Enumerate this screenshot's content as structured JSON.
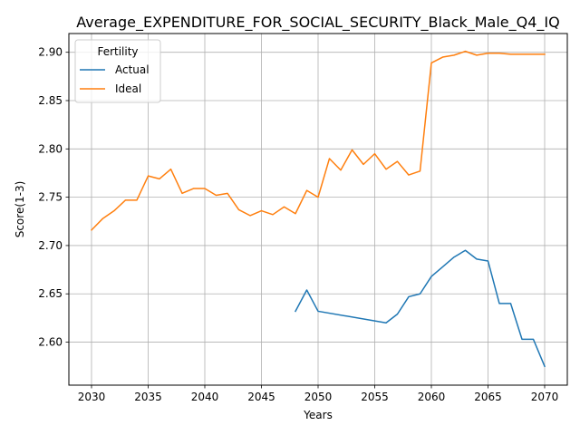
{
  "chart_data": {
    "type": "line",
    "title": "Average_EXPENDITURE_FOR_SOCIAL_SECURITY_Black_Male_Q4_IQ",
    "xlabel": "Years",
    "ylabel": "Score(1-3)",
    "xlim": [
      2028,
      2072
    ],
    "ylim": [
      2.5555,
      2.9194
    ],
    "xticks": [
      2030,
      2035,
      2040,
      2045,
      2050,
      2055,
      2060,
      2065,
      2070
    ],
    "yticks": [
      2.6,
      2.65,
      2.7,
      2.75,
      2.8,
      2.85,
      2.9
    ],
    "ytick_labels": [
      "2.60",
      "2.65",
      "2.70",
      "2.75",
      "2.80",
      "2.85",
      "2.90"
    ],
    "grid": true,
    "legend": {
      "title": "Fertility",
      "position": "top-left"
    },
    "series": [
      {
        "name": "Actual",
        "color": "#1f77b4",
        "x": [
          2048,
          2049,
          2050,
          2056,
          2057,
          2058,
          2059,
          2060,
          2061,
          2062,
          2063,
          2064,
          2065,
          2066,
          2067,
          2068,
          2069,
          2070
        ],
        "values": [
          2.632,
          2.654,
          2.632,
          2.62,
          2.629,
          2.647,
          2.65,
          2.668,
          2.678,
          2.688,
          2.695,
          2.686,
          2.684,
          2.64,
          2.64,
          2.603,
          2.603,
          2.575
        ]
      },
      {
        "name": "Ideal",
        "color": "#ff7f0e",
        "x": [
          2030,
          2031,
          2032,
          2033,
          2034,
          2035,
          2036,
          2037,
          2038,
          2039,
          2040,
          2041,
          2042,
          2043,
          2044,
          2045,
          2046,
          2047,
          2048,
          2049,
          2050,
          2051,
          2052,
          2053,
          2054,
          2055,
          2056,
          2057,
          2058,
          2059,
          2060,
          2061,
          2062,
          2063,
          2064,
          2065,
          2066,
          2067,
          2068,
          2069,
          2070
        ],
        "values": [
          2.716,
          2.728,
          2.736,
          2.747,
          2.747,
          2.772,
          2.769,
          2.779,
          2.754,
          2.759,
          2.759,
          2.752,
          2.754,
          2.737,
          2.731,
          2.736,
          2.732,
          2.74,
          2.733,
          2.757,
          2.75,
          2.79,
          2.778,
          2.799,
          2.784,
          2.795,
          2.779,
          2.787,
          2.773,
          2.777,
          2.889,
          2.895,
          2.897,
          2.901,
          2.897,
          2.899,
          2.899,
          2.898,
          2.898,
          2.898,
          2.898
        ]
      }
    ]
  }
}
